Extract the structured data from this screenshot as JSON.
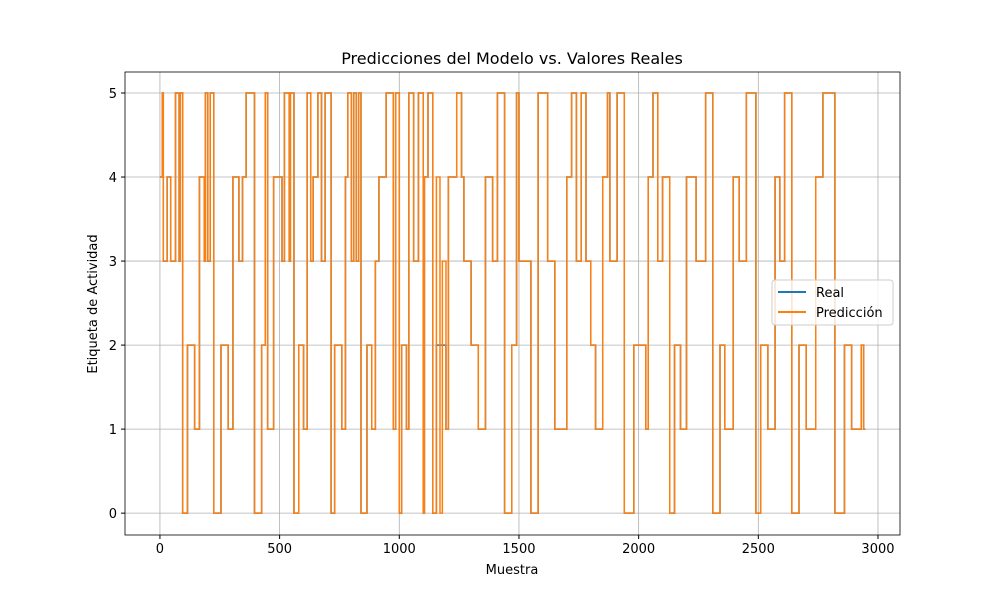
{
  "chart_data": {
    "type": "line",
    "drawstyle": "steps-post",
    "title": "Predicciones del Modelo vs. Valores Reales",
    "xlabel": "Muestra",
    "ylabel": "Etiqueta de Actividad",
    "x": [
      0,
      10,
      14,
      30,
      45,
      65,
      80,
      85,
      95,
      115,
      145,
      165,
      185,
      190,
      200,
      210,
      225,
      255,
      285,
      305,
      330,
      345,
      360,
      395,
      425,
      440,
      450,
      475,
      510,
      520,
      540,
      545,
      560,
      580,
      600,
      615,
      630,
      640,
      660,
      675,
      690,
      715,
      730,
      760,
      775,
      785,
      800,
      810,
      820,
      830,
      840,
      865,
      885,
      900,
      915,
      945,
      975,
      985,
      1000,
      1010,
      1030,
      1040,
      1060,
      1080,
      1100,
      1105,
      1120,
      1140,
      1155,
      1170,
      1180,
      1195,
      1205,
      1240,
      1260,
      1270,
      1300,
      1330,
      1360,
      1390,
      1410,
      1440,
      1470,
      1490,
      1500,
      1550,
      1580,
      1620,
      1650,
      1700,
      1720,
      1740,
      1760,
      1780,
      1800,
      1820,
      1850,
      1870,
      1880,
      1910,
      1940,
      1980,
      2030,
      2040,
      2060,
      2080,
      2100,
      2130,
      2150,
      2175,
      2200,
      2240,
      2280,
      2310,
      2340,
      2360,
      2395,
      2420,
      2450,
      2490,
      2510,
      2540,
      2570,
      2590,
      2610,
      2640,
      2670,
      2700,
      2740,
      2770,
      2820,
      2860,
      2890,
      2930,
      2940,
      2947
    ],
    "series": [
      {
        "name": "Real",
        "color": "#1f77b4",
        "values": [
          4,
          5,
          3,
          4,
          3,
          5,
          3,
          5,
          0,
          2,
          1,
          4,
          3,
          5,
          3,
          5,
          0,
          2,
          1,
          4,
          3,
          4,
          5,
          0,
          2,
          5,
          1,
          4,
          3,
          5,
          3,
          5,
          0,
          2,
          1,
          5,
          3,
          4,
          5,
          3,
          5,
          0,
          2,
          1,
          4,
          5,
          3,
          5,
          3,
          5,
          0,
          2,
          1,
          3,
          4,
          5,
          1,
          5,
          0,
          2,
          1,
          5,
          3,
          5,
          0,
          4,
          5,
          0,
          2,
          2,
          2,
          1,
          4,
          5,
          4,
          3,
          2,
          1,
          4,
          3,
          5,
          0,
          2,
          5,
          3,
          0,
          5,
          3,
          1,
          4,
          5,
          3,
          5,
          3,
          2,
          1,
          4,
          5,
          3,
          5,
          0,
          2,
          1,
          4,
          5,
          3,
          4,
          0,
          2,
          1,
          4,
          3,
          5,
          0,
          2,
          1,
          4,
          3,
          5,
          0,
          2,
          1,
          4,
          3,
          5,
          0,
          2,
          1,
          4,
          5,
          0,
          2,
          1,
          2,
          1,
          1
        ]
      },
      {
        "name": "Predicción",
        "color": "#ff7f0e",
        "values": [
          4,
          5,
          3,
          4,
          3,
          5,
          3,
          5,
          0,
          2,
          1,
          4,
          3,
          5,
          3,
          5,
          0,
          2,
          1,
          4,
          3,
          4,
          5,
          0,
          2,
          5,
          1,
          4,
          3,
          5,
          3,
          5,
          0,
          2,
          1,
          5,
          3,
          4,
          5,
          3,
          5,
          0,
          2,
          1,
          4,
          5,
          3,
          5,
          3,
          5,
          0,
          2,
          1,
          3,
          4,
          5,
          1,
          5,
          0,
          2,
          1,
          5,
          3,
          5,
          0,
          4,
          5,
          0,
          4,
          0,
          3,
          1,
          4,
          5,
          4,
          3,
          2,
          1,
          4,
          3,
          5,
          0,
          2,
          5,
          3,
          0,
          5,
          3,
          1,
          4,
          5,
          3,
          5,
          3,
          2,
          1,
          4,
          5,
          3,
          5,
          0,
          2,
          1,
          4,
          5,
          3,
          4,
          0,
          2,
          1,
          4,
          3,
          5,
          0,
          2,
          1,
          4,
          3,
          5,
          0,
          2,
          1,
          4,
          3,
          5,
          0,
          2,
          1,
          4,
          5,
          0,
          2,
          1,
          2,
          1,
          1
        ]
      }
    ],
    "xlim": [
      -146,
      3092
    ],
    "xticks": [
      0,
      500,
      1000,
      1500,
      2000,
      2500,
      3000
    ],
    "ylim": [
      -0.26,
      5.25
    ],
    "yticks": [
      0,
      1,
      2,
      3,
      4,
      5
    ],
    "grid": true,
    "legend": "center right"
  }
}
